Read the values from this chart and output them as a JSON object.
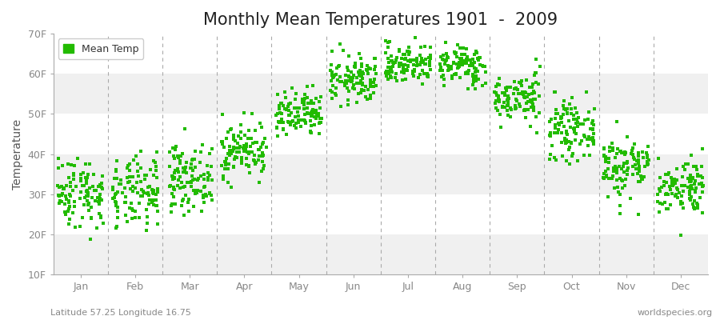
{
  "title": "Monthly Mean Temperatures 1901  -  2009",
  "ylabel": "Temperature",
  "bottom_left_text": "Latitude 57.25 Longitude 16.75",
  "bottom_right_text": "worldspecies.org",
  "legend_label": "Mean Temp",
  "ylim": [
    10,
    70
  ],
  "yticks": [
    10,
    20,
    30,
    40,
    50,
    60,
    70
  ],
  "ytick_labels": [
    "10F",
    "20F",
    "30F",
    "40F",
    "50F",
    "60F",
    "70F"
  ],
  "months": [
    "Jan",
    "Feb",
    "Mar",
    "Apr",
    "May",
    "Jun",
    "Jul",
    "Aug",
    "Sep",
    "Oct",
    "Nov",
    "Dec"
  ],
  "mean_temps_F": [
    30.5,
    30.0,
    34.0,
    41.0,
    49.5,
    58.5,
    62.5,
    62.0,
    54.0,
    46.0,
    37.0,
    32.0
  ],
  "std_temps_F": [
    4.5,
    4.5,
    4.0,
    3.5,
    3.0,
    3.0,
    2.5,
    2.5,
    3.0,
    3.5,
    4.0,
    3.5
  ],
  "n_years": 109,
  "marker_color": "#22bb00",
  "marker_size": 5,
  "bg_color": "#ffffff",
  "band_colors_even": "#f0f0f0",
  "band_colors_odd": "#ffffff",
  "dashed_line_color": "#aaaaaa",
  "title_fontsize": 15,
  "axis_label_fontsize": 10,
  "tick_fontsize": 9,
  "annotation_fontsize": 8,
  "spine_color": "#aaaaaa",
  "tick_label_color": "#888888"
}
